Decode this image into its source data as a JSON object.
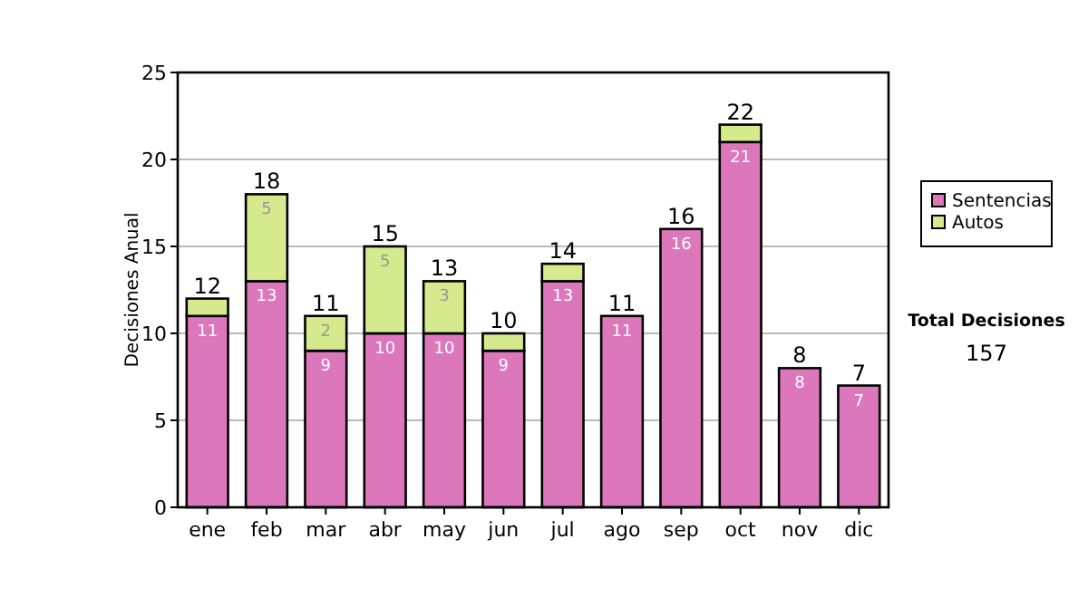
{
  "chart_data": {
    "type": "bar",
    "stacked": true,
    "ylabel": "Decisiones Anual",
    "categories": [
      "ene",
      "feb",
      "mar",
      "abr",
      "may",
      "jun",
      "jul",
      "ago",
      "sep",
      "oct",
      "nov",
      "dic"
    ],
    "series": [
      {
        "name": "Sentencias",
        "color": "#dd77bb",
        "values": [
          11,
          13,
          9,
          10,
          10,
          9,
          13,
          11,
          16,
          21,
          8,
          7
        ],
        "value_labels": [
          "11",
          "13",
          "9",
          "10",
          "10",
          "9",
          "13",
          "11",
          "16",
          "21",
          "8",
          "7"
        ]
      },
      {
        "name": "Autos",
        "color": "#d4ea8c",
        "values": [
          1,
          5,
          2,
          5,
          3,
          1,
          1,
          0,
          0,
          1,
          0,
          0
        ],
        "value_labels": [
          null,
          "5",
          "2",
          "5",
          "3",
          null,
          null,
          null,
          null,
          null,
          null,
          null
        ]
      }
    ],
    "totals": [
      "12",
      "18",
      "11",
      "15",
      "13",
      "10",
      "14",
      "11",
      "16",
      "22",
      "8",
      "7"
    ],
    "ylim": [
      0,
      25
    ],
    "yticks": [
      0,
      5,
      10,
      15,
      20,
      25
    ],
    "grid": "y",
    "legend": "right",
    "annotations": [
      "Total Decisiones",
      "157"
    ]
  }
}
